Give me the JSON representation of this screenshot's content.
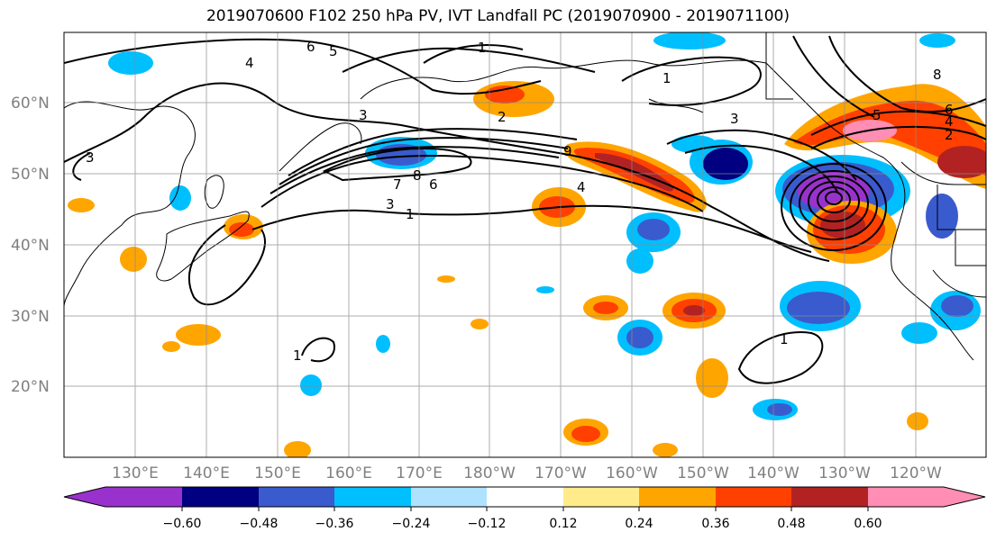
{
  "title": "2019070600 F102 250 hPa PV, IVT Landfall PC (2019070900 - 2019071100)",
  "map": {
    "lon_labels": [
      "130°E",
      "140°E",
      "150°E",
      "160°E",
      "170°E",
      "180°W",
      "170°W",
      "160°W",
      "150°W",
      "140°W",
      "130°W",
      "120°W"
    ],
    "lat_labels": [
      "60°N",
      "50°N",
      "40°N",
      "30°N",
      "20°N"
    ],
    "contour_labels": [
      "6",
      "5",
      "4",
      "1",
      "1",
      "2",
      "3",
      "3",
      "3",
      "8",
      "7",
      "6",
      "4",
      "3",
      "1",
      "2",
      "4",
      "6",
      "5",
      "9",
      "8",
      "1",
      "1"
    ]
  },
  "colorbar": {
    "ticks": [
      "−0.60",
      "−0.48",
      "−0.36",
      "−0.24",
      "−0.12",
      "0.12",
      "0.24",
      "0.36",
      "0.48",
      "0.60"
    ],
    "colors": [
      "#9932CC",
      "#000080",
      "#3A5BCD",
      "#00BFFF",
      "#AEE2FF",
      "#FFFFFF",
      "#FFEB8A",
      "#FFA500",
      "#FF4000",
      "#B22222",
      "#FF8DB4"
    ]
  }
}
